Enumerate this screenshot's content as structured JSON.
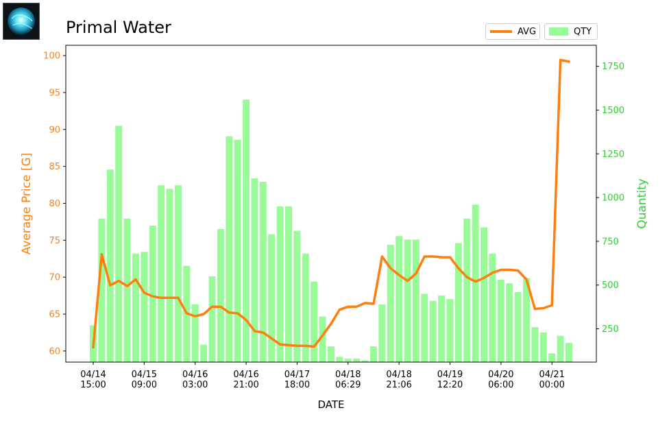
{
  "title": "Primal Water",
  "icon": {
    "name": "primal-water-crystal-icon"
  },
  "legend": {
    "avg_label": "AVG",
    "qty_label": "QTY"
  },
  "colors": {
    "avg_line": "#ff7f0e",
    "qty_bar": "#98fb98",
    "left_axis": "#ff7f0e",
    "right_axis": "#32cd32"
  },
  "chart_data": {
    "type": "bar+line",
    "title": "Primal Water",
    "xlabel": "DATE",
    "ylabel_left": "Average Price [G]",
    "ylabel_right": "Quantity",
    "ylim_left": [
      58.5,
      101.4
    ],
    "ylim_right": [
      60,
      1870
    ],
    "yticks_left": [
      60,
      65,
      70,
      75,
      80,
      85,
      90,
      95,
      100
    ],
    "yticks_right": [
      250,
      500,
      750,
      1000,
      1250,
      1500,
      1750
    ],
    "xticks": [
      {
        "index": 0,
        "line1": "04/14",
        "line2": "15:00"
      },
      {
        "index": 6,
        "line1": "04/15",
        "line2": "09:00"
      },
      {
        "index": 12,
        "line1": "04/16",
        "line2": "03:00"
      },
      {
        "index": 18,
        "line1": "04/16",
        "line2": "21:00"
      },
      {
        "index": 24,
        "line1": "04/17",
        "line2": "18:00"
      },
      {
        "index": 30,
        "line1": "04/18",
        "line2": "06:29"
      },
      {
        "index": 36,
        "line1": "04/18",
        "line2": "21:06"
      },
      {
        "index": 42,
        "line1": "04/19",
        "line2": "12:20"
      },
      {
        "index": 48,
        "line1": "04/20",
        "line2": "06:00"
      },
      {
        "index": 54,
        "line1": "04/21",
        "line2": "00:00"
      }
    ],
    "legend_position": "top-right (above plot)",
    "grid": false,
    "series": [
      {
        "name": "QTY",
        "type": "bar",
        "axis": "right",
        "values": [
          270,
          880,
          1160,
          1410,
          880,
          680,
          690,
          840,
          1070,
          1050,
          1070,
          610,
          390,
          160,
          550,
          820,
          1350,
          1330,
          1560,
          1110,
          1090,
          790,
          950,
          950,
          810,
          680,
          520,
          320,
          150,
          90,
          80,
          80,
          70,
          150,
          390,
          730,
          780,
          760,
          760,
          450,
          410,
          440,
          420,
          740,
          880,
          960,
          830,
          680,
          530,
          510,
          460,
          540,
          260,
          230,
          110,
          210,
          170
        ]
      },
      {
        "name": "AVG",
        "type": "line",
        "axis": "left",
        "values": [
          60.5,
          73.1,
          68.9,
          69.5,
          68.8,
          69.7,
          67.9,
          67.4,
          67.2,
          67.2,
          67.2,
          65.1,
          64.7,
          65.0,
          66.0,
          66.0,
          65.2,
          65.1,
          64.2,
          62.7,
          62.5,
          61.7,
          60.9,
          60.8,
          60.7,
          60.7,
          60.6,
          62.1,
          63.7,
          65.6,
          66.0,
          66.0,
          66.5,
          66.4,
          72.8,
          71.2,
          70.3,
          69.5,
          70.5,
          72.8,
          72.8,
          72.7,
          72.7,
          71.2,
          70.0,
          69.4,
          69.9,
          70.6,
          71.0,
          71.0,
          70.9,
          69.7,
          65.7,
          65.8,
          66.2,
          99.4,
          99.2
        ]
      }
    ]
  }
}
